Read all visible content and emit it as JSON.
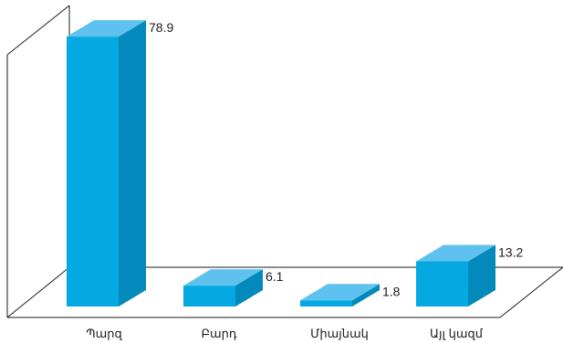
{
  "chart_data": {
    "type": "bar",
    "categories": [
      "Պարզ",
      "Բարդ",
      "Միայնակ",
      "Այլ կազմ"
    ],
    "values": [
      78.9,
      6.1,
      1.8,
      13.2
    ],
    "value_labels": [
      "78.9",
      "6.1",
      "1.8",
      "13.2"
    ],
    "title": "",
    "xlabel": "",
    "ylabel": "",
    "ylim": [
      0,
      80
    ],
    "grid": false,
    "legend": "none",
    "three_d": true
  },
  "colors": {
    "bar_front": "#05a9e2",
    "bar_top": "#5fc2ee",
    "bar_side": "#0389bb",
    "frame": "#1a1a1a"
  }
}
